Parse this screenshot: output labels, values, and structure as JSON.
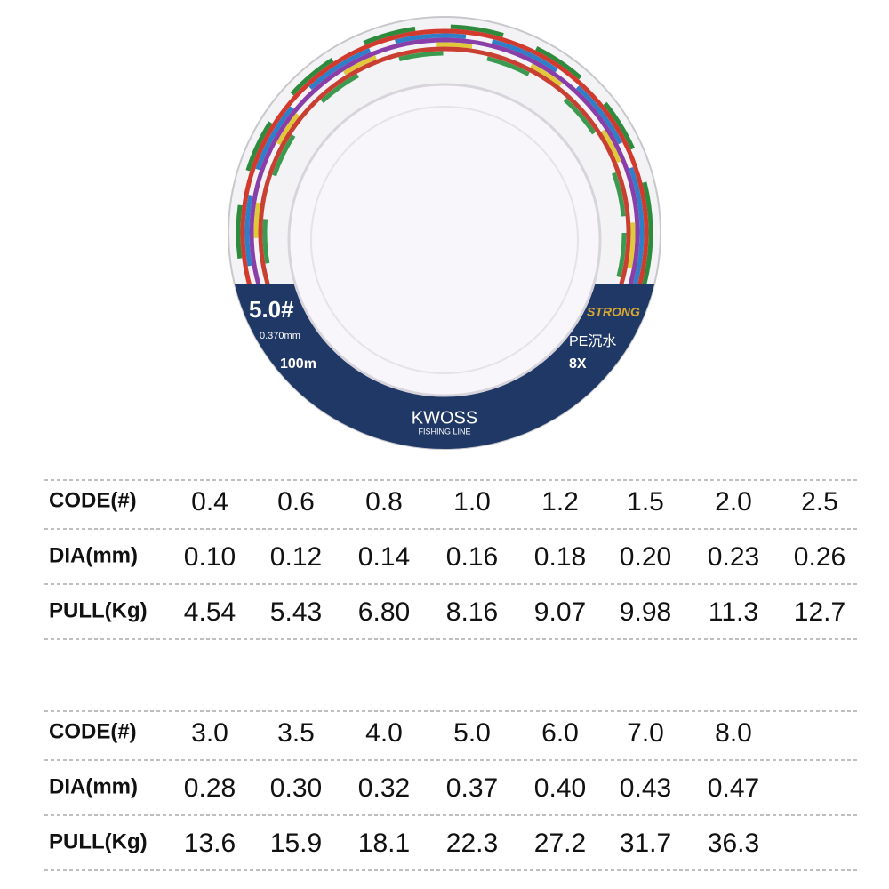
{
  "spool": {
    "code": "5.0#",
    "diameter": "0.370mm",
    "length": "100m",
    "brand_tag": "STRONG",
    "kind": "PE沉水",
    "strands": "8X",
    "logo": "KWOSS",
    "logo_sub": "FISHING LINE"
  },
  "tables": [
    {
      "rows": [
        [
          "CODE(#)",
          "0.4",
          "0.6",
          "0.8",
          "1.0",
          "1.2",
          "1.5",
          "2.0",
          "2.5"
        ],
        [
          "DIA(mm)",
          "0.10",
          "0.12",
          "0.14",
          "0.16",
          "0.18",
          "0.20",
          "0.23",
          "0.26"
        ],
        [
          "PULL(Kg)",
          "4.54",
          "5.43",
          "6.80",
          "8.16",
          "9.07",
          "9.98",
          "11.3",
          "12.7"
        ]
      ]
    },
    {
      "rows": [
        [
          "CODE(#)",
          "3.0",
          "3.5",
          "4.0",
          "5.0",
          "6.0",
          "7.0",
          "8.0"
        ],
        [
          "DIA(mm)",
          "0.28",
          "0.30",
          "0.32",
          "0.37",
          "0.40",
          "0.43",
          "0.47"
        ],
        [
          "PULL(Kg)",
          "13.6",
          "15.9",
          "18.1",
          "22.3",
          "27.2",
          "31.7",
          "36.3"
        ]
      ]
    }
  ]
}
